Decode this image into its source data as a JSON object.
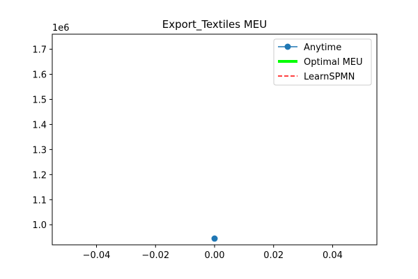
{
  "chart_data": {
    "type": "line",
    "title": "Export_Textiles MEU",
    "xlabel": "",
    "ylabel": "",
    "y_offset_label": "1e6",
    "xlim": [
      -0.055,
      0.055
    ],
    "ylim": [
      0.92,
      1.76
    ],
    "x_ticks": [
      -0.04,
      -0.02,
      0.0,
      0.02,
      0.04
    ],
    "x_tick_labels": [
      "−0.04",
      "−0.02",
      "0.00",
      "0.02",
      "0.04"
    ],
    "y_ticks": [
      1.0,
      1.1,
      1.2,
      1.3,
      1.4,
      1.5,
      1.6,
      1.7
    ],
    "y_tick_labels": [
      "1.0",
      "1.1",
      "1.2",
      "1.3",
      "1.4",
      "1.5",
      "1.6",
      "1.7"
    ],
    "grid": false,
    "legend_position": "top-right",
    "series": [
      {
        "name": "Anytime",
        "x": [
          0
        ],
        "y": [
          0.945
        ],
        "color": "#1f77b4",
        "style": "solid",
        "marker": "circle"
      },
      {
        "name": "Optimal MEU",
        "x": [],
        "y": [],
        "color": "#00ff00",
        "style": "solid-thick",
        "marker": "none"
      },
      {
        "name": "LearnSPMN",
        "x": [],
        "y": [],
        "color": "#ff0000",
        "style": "dashed",
        "marker": "none"
      }
    ]
  }
}
